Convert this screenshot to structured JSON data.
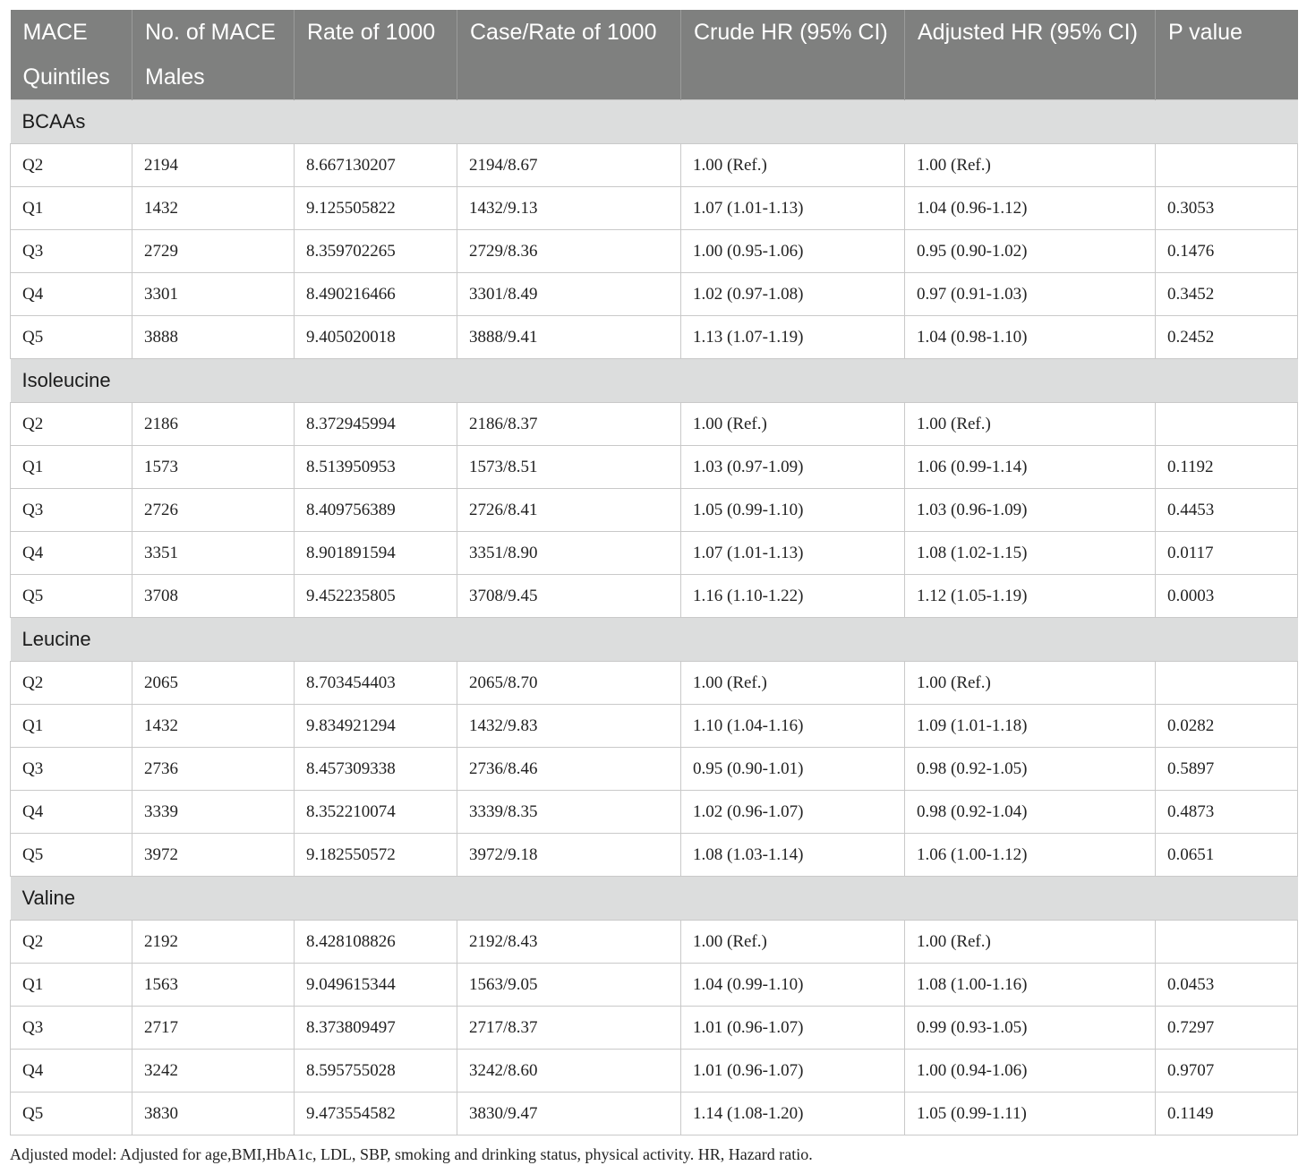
{
  "header_row1": [
    "MACE",
    "No. of MACE",
    "Rate of 1000",
    "Case/Rate of 1000",
    "Crude HR (95% CI)",
    "Adjusted HR (95% CI)",
    "P value"
  ],
  "header_row2": [
    "Quintiles",
    "Males",
    "",
    "",
    "",
    "",
    ""
  ],
  "sections": [
    {
      "name": "BCAAs",
      "rows": [
        [
          "Q2",
          "2194",
          "8.667130207",
          "2194/8.67",
          "1.00 (Ref.)",
          "1.00 (Ref.)",
          ""
        ],
        [
          "Q1",
          "1432",
          "9.125505822",
          "1432/9.13",
          "1.07 (1.01-1.13)",
          "1.04 (0.96-1.12)",
          "0.3053"
        ],
        [
          "Q3",
          "2729",
          "8.359702265",
          "2729/8.36",
          "1.00 (0.95-1.06)",
          "0.95 (0.90-1.02)",
          "0.1476"
        ],
        [
          "Q4",
          "3301",
          "8.490216466",
          "3301/8.49",
          "1.02 (0.97-1.08)",
          "0.97 (0.91-1.03)",
          "0.3452"
        ],
        [
          "Q5",
          "3888",
          "9.405020018",
          "3888/9.41",
          "1.13 (1.07-1.19)",
          "1.04 (0.98-1.10)",
          "0.2452"
        ]
      ]
    },
    {
      "name": "Isoleucine",
      "rows": [
        [
          "Q2",
          "2186",
          "8.372945994",
          "2186/8.37",
          "1.00 (Ref.)",
          "1.00 (Ref.)",
          ""
        ],
        [
          "Q1",
          "1573",
          "8.513950953",
          "1573/8.51",
          "1.03 (0.97-1.09)",
          "1.06 (0.99-1.14)",
          "0.1192"
        ],
        [
          "Q3",
          "2726",
          "8.409756389",
          "2726/8.41",
          "1.05 (0.99-1.10)",
          "1.03 (0.96-1.09)",
          "0.4453"
        ],
        [
          "Q4",
          "3351",
          "8.901891594",
          "3351/8.90",
          "1.07 (1.01-1.13)",
          "1.08 (1.02-1.15)",
          "0.0117"
        ],
        [
          "Q5",
          "3708",
          "9.452235805",
          "3708/9.45",
          "1.16 (1.10-1.22)",
          "1.12 (1.05-1.19)",
          "0.0003"
        ]
      ]
    },
    {
      "name": "Leucine",
      "rows": [
        [
          "Q2",
          "2065",
          "8.703454403",
          "2065/8.70",
          "1.00 (Ref.)",
          "1.00 (Ref.)",
          ""
        ],
        [
          "Q1",
          "1432",
          "9.834921294",
          "1432/9.83",
          "1.10 (1.04-1.16)",
          "1.09 (1.01-1.18)",
          "0.0282"
        ],
        [
          "Q3",
          "2736",
          "8.457309338",
          "2736/8.46",
          "0.95 (0.90-1.01)",
          "0.98 (0.92-1.05)",
          "0.5897"
        ],
        [
          "Q4",
          "3339",
          "8.352210074",
          "3339/8.35",
          "1.02 (0.96-1.07)",
          "0.98 (0.92-1.04)",
          "0.4873"
        ],
        [
          "Q5",
          "3972",
          "9.182550572",
          "3972/9.18",
          "1.08 (1.03-1.14)",
          "1.06 (1.00-1.12)",
          "0.0651"
        ]
      ]
    },
    {
      "name": "Valine",
      "rows": [
        [
          "Q2",
          "2192",
          "8.428108826",
          "2192/8.43",
          "1.00 (Ref.)",
          "1.00 (Ref.)",
          ""
        ],
        [
          "Q1",
          "1563",
          "9.049615344",
          "1563/9.05",
          "1.04 (0.99-1.10)",
          "1.08 (1.00-1.16)",
          "0.0453"
        ],
        [
          "Q3",
          "2717",
          "8.373809497",
          "2717/8.37",
          "1.01 (0.96-1.07)",
          "0.99 (0.93-1.05)",
          "0.7297"
        ],
        [
          "Q4",
          "3242",
          "8.595755028",
          "3242/8.60",
          "1.01 (0.96-1.07)",
          "1.00 (0.94-1.06)",
          "0.9707"
        ],
        [
          "Q5",
          "3830",
          "9.473554582",
          "3830/9.47",
          "1.14 (1.08-1.20)",
          "1.05 (0.99-1.11)",
          "0.1149"
        ]
      ]
    }
  ],
  "footnote": "Adjusted model: Adjusted for age,BMI,HbA1c, LDL, SBP, smoking and drinking status, physical activity. HR, Hazard ratio."
}
